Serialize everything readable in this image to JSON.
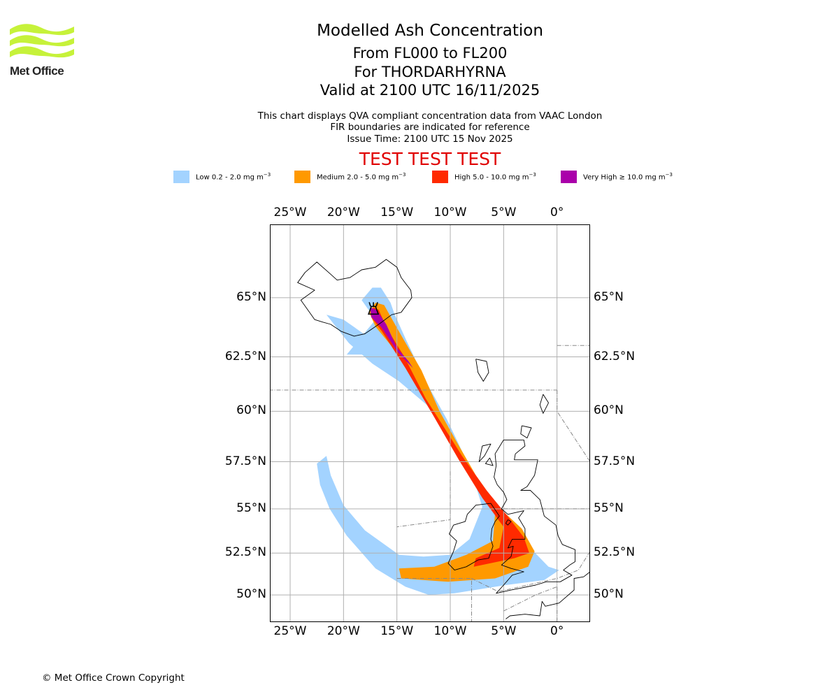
{
  "logo": {
    "name": "Met Office",
    "colors": {
      "waves": "#c6f23a",
      "text": "#222222"
    }
  },
  "title": {
    "main": "Modelled Ash Concentration",
    "levels": "From FL000 to FL200",
    "volcano": "For THORDARHYRNA",
    "valid": "Valid at 2100 UTC 16/11/2025"
  },
  "subtitle": {
    "line1": "This chart displays QVA compliant concentration data from VAAC London",
    "line2": "FIR boundaries are indicated for reference",
    "line3": "Issue Time: 2100 UTC 15 Nov 2025"
  },
  "test_banner": "TEST TEST TEST",
  "legend": [
    {
      "label": "Low 0.2 - 2.0 mg m",
      "exp": "−3",
      "color": "#a3d3ff"
    },
    {
      "label": "Medium 2.0 - 5.0 mg m",
      "exp": "−3",
      "color": "#ff9900"
    },
    {
      "label": "High 5.0 - 10.0 mg m",
      "exp": "−3",
      "color": "#ff2a00"
    },
    {
      "label": "Very High  ≥  10.0 mg m",
      "exp": "−3",
      "color": "#aa00aa"
    }
  ],
  "map": {
    "lon_range": [
      -26.9,
      3.1
    ],
    "lat_range": [
      48.3,
      67.8
    ],
    "lon_ticks": [
      {
        "value": -25,
        "label": "25°W"
      },
      {
        "value": -20,
        "label": "20°W"
      },
      {
        "value": -15,
        "label": "15°W"
      },
      {
        "value": -10,
        "label": "10°W"
      },
      {
        "value": -5,
        "label": "5°W"
      },
      {
        "value": 0,
        "label": "0°"
      }
    ],
    "lat_ticks": [
      {
        "value": 65,
        "label": "65°N"
      },
      {
        "value": 62.5,
        "label": "62.5°N"
      },
      {
        "value": 60,
        "label": "60°N"
      },
      {
        "value": 57.5,
        "label": "57.5°N"
      },
      {
        "value": 55,
        "label": "55°N"
      },
      {
        "value": 52.5,
        "label": "52.5°N"
      },
      {
        "value": 50,
        "label": "50°N"
      }
    ],
    "gridline_color": "#b0b0b0",
    "volcano": {
      "lon": -17.2,
      "lat": 64.5
    },
    "ash_layers": [
      {
        "level": "low",
        "color": "#a3d3ff",
        "polygon": [
          [
            -17.3,
            65.4
          ],
          [
            -16.5,
            65.4
          ],
          [
            -15.6,
            64.8
          ],
          [
            -15.2,
            64.3
          ],
          [
            -14.1,
            63.2
          ],
          [
            -12.3,
            61.4
          ],
          [
            -10.3,
            59.6
          ],
          [
            -8.6,
            57.7
          ],
          [
            -6.6,
            55.5
          ],
          [
            -4.1,
            54.1
          ],
          [
            -2.2,
            52.6
          ],
          [
            -0.8,
            51.7
          ],
          [
            0.2,
            51.5
          ],
          [
            -1.2,
            50.9
          ],
          [
            -4.8,
            50.6
          ],
          [
            -9.6,
            50.1
          ],
          [
            -12.0,
            50.0
          ],
          [
            -14.2,
            50.5
          ],
          [
            -17.0,
            51.6
          ],
          [
            -19.7,
            53.5
          ],
          [
            -21.3,
            55.0
          ],
          [
            -22.2,
            56.3
          ],
          [
            -22.5,
            57.4
          ],
          [
            -21.6,
            57.8
          ],
          [
            -21.2,
            56.8
          ],
          [
            -20.0,
            55.2
          ],
          [
            -18.0,
            53.8
          ],
          [
            -14.8,
            52.4
          ],
          [
            -12.5,
            52.3
          ],
          [
            -10.0,
            52.4
          ],
          [
            -8.2,
            53.3
          ],
          [
            -7.0,
            55.1
          ],
          [
            -7.8,
            56.6
          ],
          [
            -9.4,
            58.0
          ],
          [
            -12.2,
            60.3
          ],
          [
            -14.8,
            61.4
          ],
          [
            -17.3,
            62.2
          ],
          [
            -19.5,
            63.1
          ],
          [
            -21.6,
            64.3
          ],
          [
            -20.0,
            64.1
          ],
          [
            -17.8,
            63.4
          ],
          [
            -16.2,
            62.9
          ],
          [
            -17.5,
            62.6
          ],
          [
            -19.7,
            62.6
          ],
          [
            -17.0,
            64.1
          ],
          [
            -18.3,
            64.9
          ]
        ]
      },
      {
        "level": "medium",
        "color": "#ff9900",
        "polygon": [
          [
            -17.0,
            64.8
          ],
          [
            -16.2,
            64.7
          ],
          [
            -14.8,
            63.6
          ],
          [
            -12.7,
            61.9
          ],
          [
            -11.0,
            60.0
          ],
          [
            -9.5,
            58.6
          ],
          [
            -7.6,
            56.8
          ],
          [
            -5.5,
            55.1
          ],
          [
            -3.3,
            53.9
          ],
          [
            -2.1,
            52.6
          ],
          [
            -2.7,
            51.7
          ],
          [
            -5.8,
            51.0
          ],
          [
            -10.2,
            50.8
          ],
          [
            -14.6,
            51.0
          ],
          [
            -14.8,
            51.6
          ],
          [
            -11.5,
            51.7
          ],
          [
            -8.5,
            52.4
          ],
          [
            -6.0,
            53.2
          ],
          [
            -5.8,
            54.8
          ],
          [
            -7.8,
            56.6
          ],
          [
            -10.2,
            58.8
          ],
          [
            -12.8,
            61.0
          ],
          [
            -15.2,
            62.8
          ],
          [
            -17.0,
            63.8
          ],
          [
            -17.6,
            64.4
          ]
        ]
      },
      {
        "level": "high",
        "color": "#ff2a00",
        "polygon": [
          [
            -17.2,
            64.6
          ],
          [
            -16.7,
            64.5
          ],
          [
            -15.9,
            63.7
          ],
          [
            -14.3,
            62.5
          ],
          [
            -12.3,
            60.6
          ],
          [
            -10.8,
            59.4
          ],
          [
            -8.9,
            57.8
          ],
          [
            -6.6,
            56.0
          ],
          [
            -4.5,
            54.5
          ],
          [
            -3.1,
            53.4
          ],
          [
            -2.6,
            52.5
          ],
          [
            -4.0,
            52.2
          ],
          [
            -7.8,
            51.7
          ],
          [
            -7.6,
            52.2
          ],
          [
            -5.4,
            52.8
          ],
          [
            -5.0,
            54.0
          ],
          [
            -7.0,
            55.6
          ],
          [
            -9.2,
            57.6
          ],
          [
            -11.6,
            59.8
          ],
          [
            -14.2,
            62.0
          ],
          [
            -16.4,
            63.6
          ],
          [
            -17.4,
            64.2
          ]
        ]
      },
      {
        "level": "very_high",
        "color": "#aa00aa",
        "polygon": [
          [
            -17.5,
            64.6
          ],
          [
            -16.9,
            64.5
          ],
          [
            -16.0,
            63.9
          ],
          [
            -15.0,
            62.9
          ],
          [
            -13.9,
            62.3
          ],
          [
            -13.5,
            62.0
          ],
          [
            -14.9,
            62.7
          ],
          [
            -16.5,
            63.8
          ],
          [
            -17.4,
            64.2
          ]
        ]
      }
    ],
    "fir_boundaries": [
      [
        [
          -27,
          61
        ],
        [
          0,
          61
        ]
      ],
      [
        [
          0,
          63
        ],
        [
          3.1,
          63
        ]
      ],
      [
        [
          0,
          61
        ],
        [
          0,
          60
        ],
        [
          3.1,
          57.5
        ]
      ],
      [
        [
          -10,
          57
        ],
        [
          -10,
          54.4
        ],
        [
          -15,
          54
        ]
      ],
      [
        [
          -15,
          51
        ],
        [
          -8,
          51
        ],
        [
          -8,
          48.3
        ]
      ],
      [
        [
          -8,
          51
        ],
        [
          -5.5,
          50.2
        ],
        [
          0,
          51
        ],
        [
          2,
          51.5
        ],
        [
          3.1,
          52.6
        ]
      ],
      [
        [
          -5,
          49
        ],
        [
          -2,
          50
        ],
        [
          0,
          50.5
        ]
      ],
      [
        [
          -5,
          55
        ],
        [
          3.1,
          55
        ]
      ],
      [
        [
          0,
          50.5
        ],
        [
          0,
          48.3
        ]
      ]
    ],
    "coastlines": [
      [
        [
          -22.0,
          64.0
        ],
        [
          -22.7,
          64.1
        ],
        [
          -24.0,
          64.9
        ],
        [
          -22.7,
          65.3
        ],
        [
          -24.3,
          65.6
        ],
        [
          -23.6,
          66.0
        ],
        [
          -22.5,
          66.4
        ],
        [
          -21.4,
          66.0
        ],
        [
          -20.6,
          65.7
        ],
        [
          -19.4,
          65.8
        ],
        [
          -18.3,
          66.1
        ],
        [
          -17.0,
          66.2
        ],
        [
          -16.0,
          66.5
        ],
        [
          -15.0,
          66.2
        ],
        [
          -14.6,
          65.8
        ],
        [
          -13.7,
          65.3
        ],
        [
          -13.6,
          65.0
        ],
        [
          -14.6,
          64.4
        ],
        [
          -15.5,
          64.3
        ],
        [
          -16.7,
          63.9
        ],
        [
          -18.0,
          63.5
        ],
        [
          -19.0,
          63.4
        ],
        [
          -20.2,
          63.6
        ],
        [
          -21.2,
          63.9
        ],
        [
          -22.0,
          64.0
        ]
      ],
      [
        [
          -7.6,
          62.4
        ],
        [
          -6.6,
          62.3
        ],
        [
          -6.4,
          61.8
        ],
        [
          -6.9,
          61.4
        ],
        [
          -7.4,
          61.8
        ],
        [
          -7.6,
          62.4
        ]
      ],
      [
        [
          -1.3,
          60.8
        ],
        [
          -0.8,
          60.4
        ],
        [
          -1.3,
          59.9
        ],
        [
          -1.6,
          60.3
        ],
        [
          -1.3,
          60.8
        ]
      ],
      [
        [
          -3.3,
          59.3
        ],
        [
          -2.4,
          59.2
        ],
        [
          -2.8,
          58.7
        ],
        [
          -3.4,
          58.9
        ],
        [
          -3.3,
          59.3
        ]
      ],
      [
        [
          -5.0,
          58.6
        ],
        [
          -3.1,
          58.6
        ],
        [
          -3.0,
          58.3
        ],
        [
          -3.9,
          57.9
        ],
        [
          -4.0,
          57.6
        ],
        [
          -1.8,
          57.6
        ],
        [
          -2.1,
          56.8
        ],
        [
          -2.8,
          56.2
        ],
        [
          -3.4,
          56.0
        ],
        [
          -2.5,
          56.0
        ],
        [
          -1.6,
          55.5
        ],
        [
          -1.2,
          54.6
        ],
        [
          -0.1,
          54.1
        ],
        [
          0.1,
          53.5
        ],
        [
          0.5,
          53.0
        ],
        [
          1.7,
          52.7
        ],
        [
          1.7,
          52.0
        ],
        [
          1.2,
          51.8
        ],
        [
          0.6,
          51.5
        ],
        [
          1.4,
          51.2
        ],
        [
          0.3,
          50.8
        ],
        [
          -1.0,
          50.8
        ],
        [
          -2.0,
          50.6
        ],
        [
          -3.5,
          50.4
        ],
        [
          -4.3,
          50.3
        ],
        [
          -5.7,
          50.1
        ],
        [
          -5.0,
          50.6
        ],
        [
          -4.2,
          51.2
        ],
        [
          -3.1,
          51.4
        ],
        [
          -4.3,
          51.6
        ],
        [
          -5.2,
          51.8
        ],
        [
          -4.3,
          52.3
        ],
        [
          -4.1,
          52.9
        ],
        [
          -4.6,
          52.8
        ],
        [
          -4.2,
          53.3
        ],
        [
          -3.0,
          53.3
        ],
        [
          -3.0,
          53.9
        ],
        [
          -3.6,
          54.5
        ],
        [
          -3.1,
          54.9
        ],
        [
          -4.6,
          54.7
        ],
        [
          -5.2,
          55.0
        ],
        [
          -4.7,
          55.5
        ],
        [
          -5.0,
          55.9
        ],
        [
          -5.6,
          56.3
        ],
        [
          -5.9,
          56.7
        ],
        [
          -5.7,
          57.3
        ],
        [
          -5.8,
          57.9
        ],
        [
          -5.0,
          58.6
        ]
      ],
      [
        [
          -6.2,
          55.3
        ],
        [
          -5.4,
          54.6
        ],
        [
          -5.8,
          54.3
        ],
        [
          -6.1,
          53.9
        ],
        [
          -6.2,
          53.3
        ],
        [
          -6.0,
          52.9
        ],
        [
          -6.4,
          52.2
        ],
        [
          -7.4,
          52.1
        ],
        [
          -8.5,
          51.7
        ],
        [
          -9.6,
          51.5
        ],
        [
          -10.2,
          51.9
        ],
        [
          -9.7,
          52.6
        ],
        [
          -9.4,
          53.2
        ],
        [
          -10.1,
          53.6
        ],
        [
          -9.7,
          54.1
        ],
        [
          -8.6,
          54.3
        ],
        [
          -8.4,
          54.7
        ],
        [
          -7.6,
          55.2
        ],
        [
          -6.2,
          55.3
        ]
      ],
      [
        [
          -6.3,
          57.7
        ],
        [
          -6.0,
          57.3
        ],
        [
          -6.7,
          57.4
        ],
        [
          -6.3,
          57.7
        ]
      ],
      [
        [
          -7.0,
          58.3
        ],
        [
          -6.2,
          58.4
        ],
        [
          -6.8,
          57.8
        ],
        [
          -7.3,
          57.5
        ],
        [
          -7.0,
          58.3
        ]
      ],
      [
        [
          -4.6,
          54.4
        ],
        [
          -4.3,
          54.3
        ],
        [
          -4.6,
          54.1
        ],
        [
          -4.8,
          54.2
        ],
        [
          -4.6,
          54.4
        ]
      ],
      [
        [
          -4.8,
          48.5
        ],
        [
          -4.4,
          48.7
        ],
        [
          -3.0,
          48.8
        ],
        [
          -1.6,
          48.7
        ],
        [
          -1.4,
          49.6
        ],
        [
          -1.1,
          49.3
        ],
        [
          0.2,
          49.5
        ],
        [
          1.6,
          50.3
        ],
        [
          1.6,
          51.0
        ],
        [
          2.5,
          51.1
        ],
        [
          3.1,
          51.4
        ]
      ]
    ]
  }
}
